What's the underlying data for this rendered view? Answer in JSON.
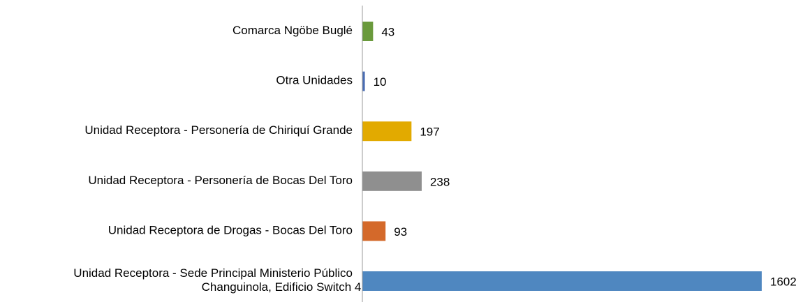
{
  "chart_data": {
    "type": "bar",
    "orientation": "horizontal",
    "categories": [
      "Comarca Ngöbe Buglé",
      "Otra Unidades",
      "Unidad Receptora - Personería de Chiriquí Grande",
      "Unidad Receptora - Personería de Bocas Del Toro",
      "Unidad Receptora de Drogas - Bocas Del Toro",
      "Unidad Receptora - Sede Principal Ministerio Público\nChanguinola, Edificio Switch 4"
    ],
    "values": [
      43,
      10,
      197,
      238,
      93,
      1602
    ],
    "colors": [
      "#6a9a3c",
      "#4a6db3",
      "#e2aa00",
      "#8f8f8f",
      "#d4692a",
      "#4f87c0"
    ]
  }
}
